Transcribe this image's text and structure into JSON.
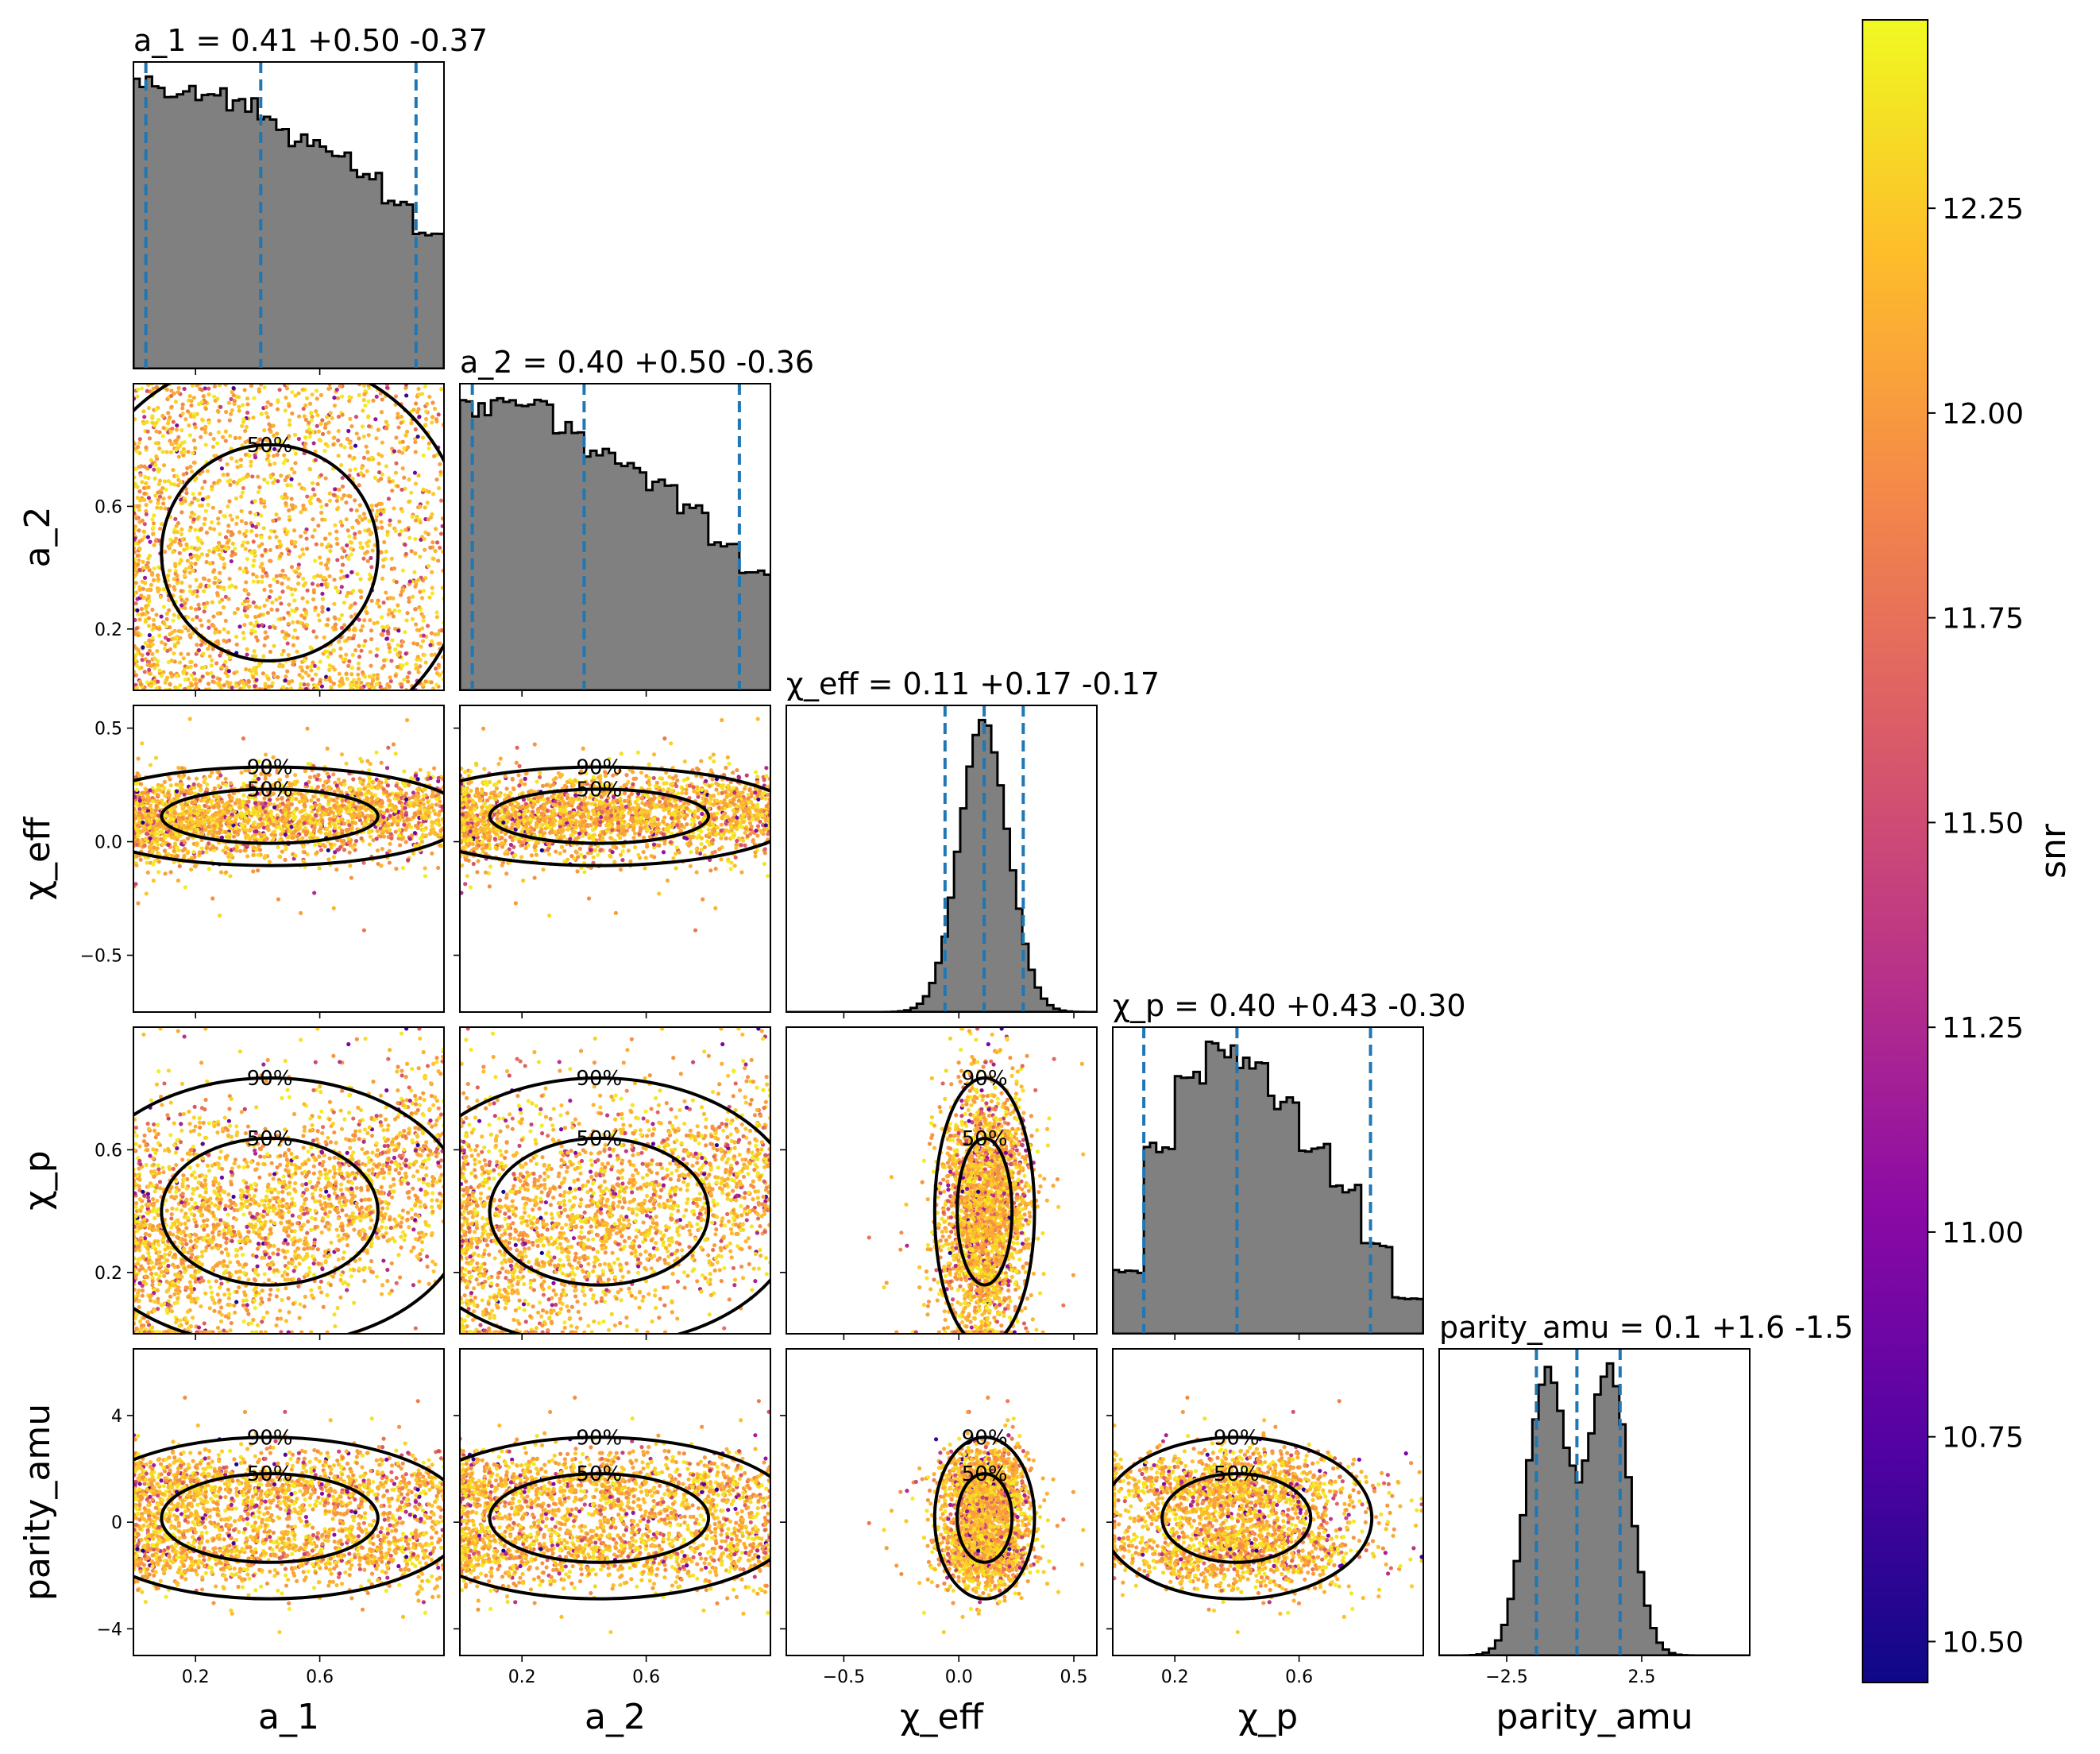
{
  "chart_data": {
    "type": "corner",
    "parameters": [
      {
        "key": "a1",
        "axis_label": "a_1",
        "median": 0.41,
        "plus": 0.5,
        "minus": 0.37,
        "title": "a_1 = 0.41^{+0.50}_{-0.37}"
      },
      {
        "key": "a2",
        "axis_label": "a_2",
        "median": 0.4,
        "plus": 0.5,
        "minus": 0.36,
        "title": "a_2 = 0.40^{+0.50}_{-0.36}"
      },
      {
        "key": "chi_eff",
        "axis_label": "χ_eff",
        "median": 0.11,
        "plus": 0.17,
        "minus": 0.17,
        "title": "χ_eff = 0.11^{+0.17}_{-0.17}"
      },
      {
        "key": "chi_p",
        "axis_label": "χ_p",
        "median": 0.4,
        "plus": 0.43,
        "minus": 0.3,
        "title": "χ_p = 0.40^{+0.43}_{-0.30}"
      },
      {
        "key": "parity_amu",
        "axis_label": "parity_amu",
        "median": 0.1,
        "plus": 1.6,
        "minus": 1.5,
        "title": "parity_amu = 0.1^{+1.6}_{-1.5}"
      }
    ],
    "axis_ranges": {
      "a1": [
        0.0,
        1.0
      ],
      "a2": [
        0.0,
        1.0
      ],
      "chi_eff": [
        -0.75,
        0.6
      ],
      "chi_p": [
        0.0,
        1.0
      ],
      "parity_amu": [
        -5.0,
        6.5
      ]
    },
    "ticks": {
      "a1": [
        0.2,
        0.6
      ],
      "a2": [
        0.2,
        0.6
      ],
      "chi_eff": [
        -0.5,
        0.0,
        0.5
      ],
      "chi_p": [
        0.2,
        0.6
      ],
      "parity_amu": [
        -4,
        0,
        4
      ],
      "parity_amu_bottom": [
        -2.5,
        2.5
      ]
    },
    "tick_labels": {
      "a1": [
        "0.2",
        "0.6"
      ],
      "a2": [
        "0.2",
        "0.6"
      ],
      "chi_eff": [
        "−0.5",
        "0.0",
        "0.5"
      ],
      "chi_p": [
        "0.2",
        "0.6"
      ],
      "parity_amu": [
        "−4",
        "0",
        "4"
      ],
      "parity_amu_bottom": [
        "−2.5",
        "2.5"
      ]
    },
    "contour_levels": [
      "50%",
      "90%"
    ],
    "histograms": {
      "a1": {
        "bin_edges": [
          0,
          0.1,
          0.2,
          0.3,
          0.4,
          0.5,
          0.6,
          0.7,
          0.8,
          0.9,
          1.0
        ],
        "density": [
          1.25,
          1.22,
          1.2,
          1.15,
          1.07,
          1.0,
          0.95,
          0.85,
          0.73,
          0.58
        ]
      },
      "a2": {
        "bin_edges": [
          0,
          0.1,
          0.2,
          0.3,
          0.4,
          0.5,
          0.6,
          0.7,
          0.8,
          0.9,
          1.0
        ],
        "density": [
          1.24,
          1.26,
          1.25,
          1.15,
          1.05,
          0.98,
          0.9,
          0.8,
          0.65,
          0.52
        ]
      },
      "chi_eff": {
        "mean": 0.11,
        "sd": 0.105
      },
      "chi_p": {
        "bin_edges": [
          0,
          0.1,
          0.2,
          0.3,
          0.4,
          0.5,
          0.6,
          0.7,
          0.8,
          0.9,
          1.0
        ],
        "density": [
          0.35,
          1.05,
          1.45,
          1.6,
          1.52,
          1.3,
          1.05,
          0.82,
          0.5,
          0.2
        ]
      },
      "parity_amu": {
        "modes": [
          -1.0,
          1.3
        ],
        "sd": 0.75
      }
    },
    "colorbar": {
      "label": "snr",
      "colormap": "plasma",
      "range": [
        10.45,
        12.48
      ],
      "ticks": [
        "10.50",
        "10.75",
        "11.00",
        "11.25",
        "11.50",
        "11.75",
        "12.00",
        "12.25"
      ]
    },
    "colors": {
      "hist_fill": "#808080",
      "quantile_lines": "#1f77b4",
      "contours": "#000000"
    }
  }
}
